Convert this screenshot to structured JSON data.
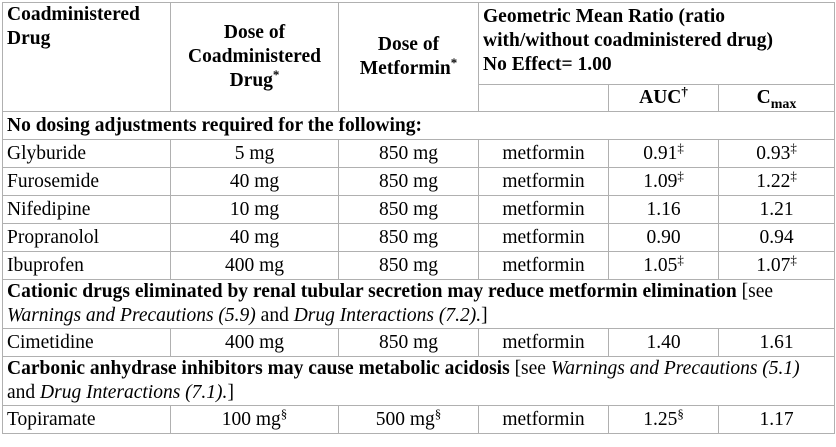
{
  "table": {
    "header": {
      "drug": "Coadministered Drug",
      "dose_drug": "Dose of Coadministered Drug",
      "dose_drug_mark": "*",
      "dose_met": "Dose of Metformin",
      "dose_met_mark": "*",
      "gmr": "Geometric Mean Ratio (ratio with/without coadministered drug)",
      "gmr_note": "No Effect= 1.00",
      "auc": "AUC",
      "auc_mark": "†",
      "cmax": "C",
      "cmax_sub": "max"
    },
    "sections": [
      {
        "heading": [
          {
            "text": "No dosing adjustments required for the following:",
            "style": "bold"
          }
        ],
        "rows": [
          [
            "Glyburide",
            "5 mg",
            "850 mg",
            "metformin",
            {
              "text": "0.91",
              "sup": "‡"
            },
            {
              "text": "0.93",
              "sup": "‡"
            }
          ],
          [
            "Furosemide",
            "40 mg",
            "850 mg",
            "metformin",
            {
              "text": "1.09",
              "sup": "‡"
            },
            {
              "text": "1.22",
              "sup": "‡"
            }
          ],
          [
            "Nifedipine",
            "10 mg",
            "850 mg",
            "metformin",
            "1.16",
            "1.21"
          ],
          [
            "Propranolol",
            "40 mg",
            "850 mg",
            "metformin",
            "0.90",
            "0.94"
          ],
          [
            "Ibuprofen",
            "400 mg",
            "850 mg",
            "metformin",
            {
              "text": "1.05",
              "sup": "‡"
            },
            {
              "text": "1.07",
              "sup": "‡"
            }
          ]
        ]
      },
      {
        "heading": [
          {
            "text": "Cationic drugs eliminated by renal tubular secretion may reduce metformin elimination",
            "style": "bold"
          },
          {
            "text": " [see ",
            "style": "normal"
          },
          {
            "text": "Warnings and Precautions (5.9)",
            "style": "italic"
          },
          {
            "text": " and ",
            "style": "normal"
          },
          {
            "text": "Drug Interactions (7.2).",
            "style": "italic"
          },
          {
            "text": "]",
            "style": "normal"
          }
        ],
        "rows": [
          [
            "Cimetidine",
            "400 mg",
            "850 mg",
            "metformin",
            "1.40",
            "1.61"
          ]
        ]
      },
      {
        "heading": [
          {
            "text": "Carbonic anhydrase inhibitors may cause metabolic acidosis",
            "style": "bold"
          },
          {
            "text": " [see ",
            "style": "normal"
          },
          {
            "text": "Warnings and Precautions (5.1)",
            "style": "italic"
          },
          {
            "text": " and ",
            "style": "normal"
          },
          {
            "text": "Drug Interactions (7.1).",
            "style": "italic"
          },
          {
            "text": "]",
            "style": "normal"
          }
        ],
        "rows": [
          [
            "Topiramate",
            {
              "text": "100 mg",
              "sup": "§"
            },
            {
              "text": "500 mg",
              "sup": "§"
            },
            "metformin",
            {
              "text": "1.25",
              "sup": "§"
            },
            "1.17"
          ]
        ]
      }
    ]
  }
}
